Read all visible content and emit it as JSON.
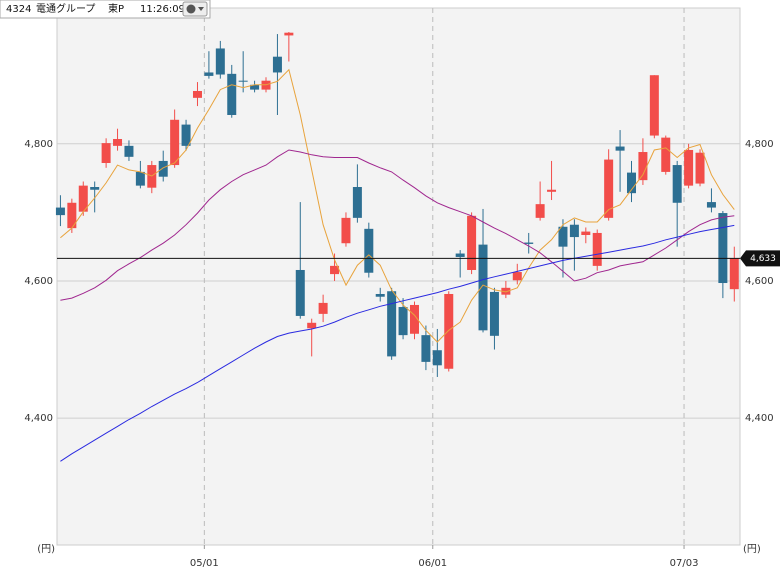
{
  "header": {
    "code": "4324",
    "name": "電通グループ",
    "market": "東P",
    "time": "11:26:09"
  },
  "chart_data": {
    "type": "candlestick",
    "open": [
      4707,
      4677,
      4701,
      4737,
      4772,
      4797,
      4797,
      4759,
      4736,
      4775,
      4769,
      4828,
      4867,
      4904,
      4939,
      4902,
      4892,
      4886,
      4879,
      4927,
      4958,
      4616,
      4531,
      4552,
      4610,
      4655,
      4737,
      4676,
      4581,
      4585,
      4562,
      4523,
      4521,
      4499,
      4472,
      4640,
      4616,
      4653,
      4584,
      4580,
      4601,
      4656,
      4692,
      4730,
      4679,
      4682,
      4667,
      4622,
      4692,
      4796,
      4758,
      4747,
      4812,
      4759,
      4769,
      4739,
      4742,
      4715,
      4699,
      4588
    ],
    "high": [
      4725,
      4720,
      4745,
      4745,
      4808,
      4822,
      4805,
      4775,
      4775,
      4790,
      4850,
      4835,
      4890,
      4935,
      4950,
      4915,
      4935,
      4892,
      4897,
      4960,
      4963,
      4715,
      4545,
      4580,
      4640,
      4700,
      4770,
      4685,
      4590,
      4590,
      4575,
      4570,
      4535,
      4530,
      4585,
      4645,
      4700,
      4705,
      4590,
      4600,
      4625,
      4670,
      4745,
      4775,
      4690,
      4690,
      4678,
      4675,
      4792,
      4820,
      4775,
      4808,
      4900,
      4812,
      4775,
      4800,
      4792,
      4735,
      4702,
      4650
    ],
    "low": [
      4680,
      4670,
      4695,
      4700,
      4765,
      4790,
      4775,
      4735,
      4728,
      4745,
      4765,
      4790,
      4855,
      4895,
      4895,
      4838,
      4875,
      4875,
      4875,
      4842,
      4920,
      4545,
      4490,
      4540,
      4600,
      4650,
      4685,
      4605,
      4570,
      4485,
      4515,
      4515,
      4470,
      4460,
      4468,
      4605,
      4610,
      4525,
      4500,
      4575,
      4595,
      4640,
      4688,
      4718,
      4605,
      4615,
      4655,
      4615,
      4688,
      4730,
      4715,
      4740,
      4808,
      4755,
      4650,
      4735,
      4738,
      4700,
      4575,
      4570
    ],
    "close": [
      4696,
      4714,
      4739,
      4733,
      4801,
      4807,
      4781,
      4739,
      4769,
      4752,
      4835,
      4797,
      4877,
      4899,
      4901,
      4842,
      4891,
      4879,
      4892,
      4904,
      4962,
      4549,
      4539,
      4568,
      4622,
      4692,
      4692,
      4612,
      4577,
      4490,
      4521,
      4565,
      4482,
      4477,
      4581,
      4635,
      4695,
      4528,
      4520,
      4590,
      4613,
      4654,
      4712,
      4733,
      4650,
      4664,
      4672,
      4670,
      4777,
      4790,
      4728,
      4788,
      4900,
      4809,
      4714,
      4791,
      4787,
      4707,
      4597,
      4633
    ],
    "up_color": "#f24d4a",
    "down_color": "#2d6f92",
    "series": [
      {
        "color": "#e8a33c",
        "values": [
          4663,
          4677,
          4701,
          4721,
          4743,
          4769,
          4762,
          4759,
          4753,
          4765,
          4772,
          4791,
          4823,
          4850,
          4879,
          4886,
          4882,
          4886,
          4886,
          4891,
          4908,
          4842,
          4762,
          4682,
          4631,
          4594,
          4623,
          4638,
          4623,
          4587,
          4565,
          4550,
          4528,
          4511,
          4528,
          4540,
          4572,
          4594,
          4587,
          4584,
          4590,
          4619,
          4645,
          4660,
          4682,
          4692,
          4686,
          4686,
          4704,
          4711,
          4733,
          4755,
          4791,
          4794,
          4780,
          4794,
          4799,
          4755,
          4726,
          4704
        ]
      },
      {
        "color": "#a0278f",
        "values": [
          4572,
          4575,
          4582,
          4590,
          4601,
          4615,
          4625,
          4634,
          4645,
          4655,
          4667,
          4682,
          4699,
          4718,
          4733,
          4745,
          4755,
          4762,
          4769,
          4781,
          4791,
          4788,
          4784,
          4781,
          4780,
          4780,
          4780,
          4772,
          4765,
          4759,
          4747,
          4736,
          4724,
          4714,
          4707,
          4701,
          4695,
          4686,
          4677,
          4669,
          4660,
          4651,
          4641,
          4628,
          4614,
          4600,
          4604,
          4612,
          4616,
          4622,
          4625,
          4628,
          4638,
          4648,
          4660,
          4672,
          4682,
          4689,
          4693,
          4695
        ]
      },
      {
        "color": "#2a2ae0",
        "values": [
          4337,
          4348,
          4358,
          4368,
          4378,
          4388,
          4398,
          4407,
          4417,
          4426,
          4435,
          4443,
          4452,
          4462,
          4472,
          4482,
          4492,
          4502,
          4511,
          4519,
          4524,
          4527,
          4530,
          4534,
          4540,
          4547,
          4553,
          4558,
          4563,
          4567,
          4571,
          4575,
          4579,
          4583,
          4588,
          4592,
          4597,
          4602,
          4606,
          4610,
          4614,
          4618,
          4622,
          4626,
          4630,
          4633,
          4636,
          4639,
          4642,
          4645,
          4648,
          4651,
          4655,
          4660,
          4664,
          4668,
          4672,
          4675,
          4678,
          4681
        ]
      }
    ],
    "xlim": [
      -0.3,
      59.5
    ],
    "xticks": [
      {
        "value": 12.6,
        "label": "05/01"
      },
      {
        "value": 32.6,
        "label": "06/01"
      },
      {
        "value": 54.6,
        "label": "07/03"
      }
    ],
    "ylim": [
      4215,
      4998
    ],
    "yticks": [
      {
        "value": 4400,
        "label": "4,400"
      },
      {
        "value": 4600,
        "label": "4,600"
      },
      {
        "value": 4800,
        "label": "4,800"
      }
    ],
    "unit": "(円)",
    "current_price": {
      "value": 4633,
      "label": "4,633"
    },
    "grid": true
  }
}
